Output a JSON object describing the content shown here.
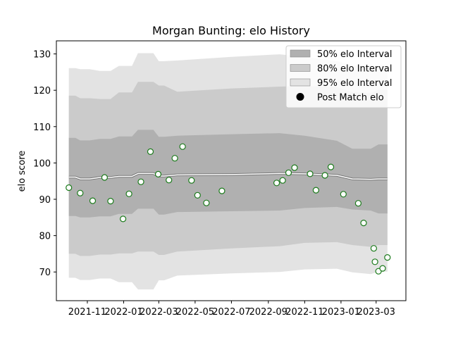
{
  "chart_data": {
    "type": "line",
    "title": "Morgan Bunting: elo History",
    "xlabel": "",
    "ylabel": "elo score",
    "xlim": [
      "2021-09-10",
      "2023-04-20"
    ],
    "ylim": [
      62.1,
      133.6
    ],
    "grid": false,
    "legend_position": "top-right",
    "x_ticks": [
      "2021-11-01",
      "2022-01-01",
      "2022-03-01",
      "2022-05-01",
      "2022-07-01",
      "2022-09-01",
      "2022-11-01",
      "2023-01-01",
      "2023-03-01"
    ],
    "x_tick_labels": [
      "2021-11",
      "2022-01",
      "2022-03",
      "2022-05",
      "2022-07",
      "2022-09",
      "2022-11",
      "2023-01",
      "2023-03"
    ],
    "y_ticks": [
      70,
      80,
      90,
      100,
      110,
      120,
      130
    ],
    "colors": {
      "band50": "#b0b0b0",
      "band80": "#cbcbcb",
      "band95": "#e3e3e3",
      "mean_line": "#ffffff",
      "mean_edge": "#777777",
      "point_edge": "#1a7a1a",
      "point_fill": "#ffffff"
    },
    "legend": [
      {
        "label": "50% elo Interval",
        "kind": "band50"
      },
      {
        "label": "80% elo Interval",
        "kind": "band80"
      },
      {
        "label": "95% elo Interval",
        "kind": "band95"
      },
      {
        "label": "Post Match elo",
        "kind": "point"
      }
    ],
    "intervals": [
      {
        "date": "2021-10-01",
        "mean": 96.1,
        "lo50": 85.4,
        "hi50": 106.9,
        "lo80": 75.0,
        "hi80": 118.5,
        "lo95": 68.4,
        "hi95": 126.1
      },
      {
        "date": "2021-10-12",
        "mean": 96.1,
        "lo50": 85.4,
        "hi50": 106.9,
        "lo80": 75.0,
        "hi80": 118.5,
        "lo95": 68.4,
        "hi95": 126.1
      },
      {
        "date": "2021-10-20",
        "mean": 95.6,
        "lo50": 85.0,
        "hi50": 106.2,
        "lo80": 74.4,
        "hi80": 117.8,
        "lo95": 67.8,
        "hi95": 125.8
      },
      {
        "date": "2021-11-05",
        "mean": 95.6,
        "lo50": 85.0,
        "hi50": 106.2,
        "lo80": 74.4,
        "hi80": 117.8,
        "lo95": 67.8,
        "hi95": 125.8
      },
      {
        "date": "2021-11-22",
        "mean": 96.0,
        "lo50": 85.3,
        "hi50": 106.6,
        "lo80": 74.8,
        "hi80": 117.6,
        "lo95": 68.2,
        "hi95": 125.3
      },
      {
        "date": "2021-12-10",
        "mean": 96.0,
        "lo50": 85.3,
        "hi50": 106.6,
        "lo80": 74.8,
        "hi80": 117.6,
        "lo95": 68.2,
        "hi95": 125.3
      },
      {
        "date": "2021-12-24",
        "mean": 96.3,
        "lo50": 86.0,
        "hi50": 107.3,
        "lo80": 75.1,
        "hi80": 119.4,
        "lo95": 67.2,
        "hi95": 126.7
      },
      {
        "date": "2022-01-15",
        "mean": 96.3,
        "lo50": 86.0,
        "hi50": 107.3,
        "lo80": 75.1,
        "hi80": 119.4,
        "lo95": 67.2,
        "hi95": 126.7
      },
      {
        "date": "2022-01-25",
        "mean": 97.1,
        "lo50": 87.4,
        "hi50": 109.1,
        "lo80": 75.6,
        "hi80": 122.3,
        "lo95": 65.2,
        "hi95": 130.2
      },
      {
        "date": "2022-02-20",
        "mean": 97.1,
        "lo50": 87.4,
        "hi50": 109.1,
        "lo80": 75.6,
        "hi80": 122.3,
        "lo95": 65.2,
        "hi95": 130.2
      },
      {
        "date": "2022-03-01",
        "mean": 96.4,
        "lo50": 85.8,
        "hi50": 107.2,
        "lo80": 74.7,
        "hi80": 121.3,
        "lo95": 67.7,
        "hi95": 128.0
      },
      {
        "date": "2022-03-10",
        "mean": 96.4,
        "lo50": 85.8,
        "hi50": 107.2,
        "lo80": 74.7,
        "hi80": 121.3,
        "lo95": 67.7,
        "hi95": 128.0
      },
      {
        "date": "2022-04-01",
        "mean": 96.7,
        "lo50": 86.5,
        "hi50": 107.5,
        "lo80": 75.6,
        "hi80": 119.6,
        "lo95": 69.0,
        "hi95": 128.2
      },
      {
        "date": "2022-07-01",
        "mean": 96.8,
        "lo50": 86.7,
        "hi50": 107.9,
        "lo80": 76.5,
        "hi80": 120.5,
        "lo95": 69.6,
        "hi95": 129.2
      },
      {
        "date": "2022-09-20",
        "mean": 97.1,
        "lo50": 86.9,
        "hi50": 108.2,
        "lo80": 77.1,
        "hi80": 121.0,
        "lo95": 70.0,
        "hi95": 129.9
      },
      {
        "date": "2022-11-01",
        "mean": 97.0,
        "lo50": 87.6,
        "hi50": 107.5,
        "lo80": 78.0,
        "hi80": 121.2,
        "lo95": 70.7,
        "hi95": 129.2
      },
      {
        "date": "2022-12-25",
        "mean": 96.6,
        "lo50": 87.9,
        "hi50": 106.1,
        "lo80": 78.2,
        "hi80": 120.9,
        "lo95": 70.9,
        "hi95": 128.0
      },
      {
        "date": "2023-01-20",
        "mean": 95.6,
        "lo50": 87.2,
        "hi50": 103.9,
        "lo80": 77.4,
        "hi80": 119.5,
        "lo95": 69.9,
        "hi95": 126.9
      },
      {
        "date": "2023-02-20",
        "mean": 95.5,
        "lo50": 86.9,
        "hi50": 103.9,
        "lo80": 76.9,
        "hi80": 119.3,
        "lo95": 69.4,
        "hi95": 126.3
      },
      {
        "date": "2023-03-05",
        "mean": 95.6,
        "lo50": 86.1,
        "hi50": 105.1,
        "lo80": 77.4,
        "hi80": 120.1,
        "lo95": 70.1,
        "hi95": 127.0
      },
      {
        "date": "2023-03-20",
        "mean": 95.6,
        "lo50": 86.1,
        "hi50": 105.1,
        "lo80": 77.4,
        "hi80": 120.1,
        "lo95": 70.1,
        "hi95": 127.0
      }
    ],
    "points": [
      {
        "date": "2021-10-01",
        "elo": 93.2
      },
      {
        "date": "2021-10-20",
        "elo": 91.7
      },
      {
        "date": "2021-11-10",
        "elo": 89.6
      },
      {
        "date": "2021-11-30",
        "elo": 96.0
      },
      {
        "date": "2021-12-10",
        "elo": 89.5
      },
      {
        "date": "2021-12-31",
        "elo": 84.6
      },
      {
        "date": "2022-01-10",
        "elo": 91.5
      },
      {
        "date": "2022-01-30",
        "elo": 94.8
      },
      {
        "date": "2022-02-15",
        "elo": 103.1
      },
      {
        "date": "2022-02-28",
        "elo": 96.9
      },
      {
        "date": "2022-03-18",
        "elo": 95.3
      },
      {
        "date": "2022-03-28",
        "elo": 101.3
      },
      {
        "date": "2022-04-10",
        "elo": 104.5
      },
      {
        "date": "2022-04-25",
        "elo": 95.2
      },
      {
        "date": "2022-05-05",
        "elo": 91.1
      },
      {
        "date": "2022-05-20",
        "elo": 89.0
      },
      {
        "date": "2022-06-15",
        "elo": 92.3
      },
      {
        "date": "2022-09-15",
        "elo": 94.5
      },
      {
        "date": "2022-09-25",
        "elo": 95.2
      },
      {
        "date": "2022-10-05",
        "elo": 97.3
      },
      {
        "date": "2022-10-15",
        "elo": 98.7
      },
      {
        "date": "2022-11-10",
        "elo": 97.0
      },
      {
        "date": "2022-11-20",
        "elo": 92.5
      },
      {
        "date": "2022-12-05",
        "elo": 96.6
      },
      {
        "date": "2022-12-15",
        "elo": 98.9
      },
      {
        "date": "2023-01-05",
        "elo": 91.4
      },
      {
        "date": "2023-01-30",
        "elo": 88.9
      },
      {
        "date": "2023-02-08",
        "elo": 83.5
      },
      {
        "date": "2023-02-25",
        "elo": 76.5
      },
      {
        "date": "2023-02-27",
        "elo": 72.8
      },
      {
        "date": "2023-03-05",
        "elo": 70.2
      },
      {
        "date": "2023-03-12",
        "elo": 71.0
      },
      {
        "date": "2023-03-20",
        "elo": 74.0
      }
    ]
  }
}
